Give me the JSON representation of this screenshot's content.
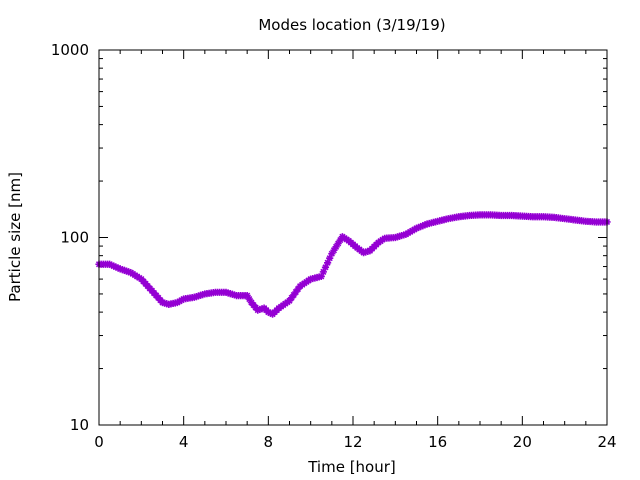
{
  "chart_data": {
    "type": "scatter",
    "title": "Modes location (3/19/19)",
    "xlabel": "Time [hour]",
    "ylabel": "Particle size [nm]",
    "xlim": [
      0,
      24
    ],
    "ylim": [
      10,
      1000
    ],
    "yscale": "log",
    "grid": false,
    "legend": "none",
    "x_ticks": [
      0,
      4,
      8,
      12,
      16,
      20,
      24
    ],
    "x_tick_labels": [
      "0",
      "4",
      "8",
      "12",
      "16",
      "20",
      "24"
    ],
    "y_ticks": [
      10,
      100,
      1000
    ],
    "y_tick_labels": [
      "10",
      "100",
      "1000"
    ],
    "marker": "star",
    "color": "#9400d3",
    "series": [
      {
        "points": [
          [
            0.0,
            72
          ],
          [
            0.5,
            72
          ],
          [
            1.0,
            68
          ],
          [
            1.5,
            65
          ],
          [
            2.0,
            60
          ],
          [
            2.5,
            52
          ],
          [
            3.0,
            45
          ],
          [
            3.3,
            44
          ],
          [
            3.7,
            45
          ],
          [
            4.0,
            47
          ],
          [
            4.5,
            48
          ],
          [
            5.0,
            50
          ],
          [
            5.5,
            51
          ],
          [
            6.0,
            51
          ],
          [
            6.5,
            49
          ],
          [
            7.0,
            49
          ],
          [
            7.2,
            45
          ],
          [
            7.5,
            41
          ],
          [
            7.8,
            42
          ],
          [
            8.0,
            40
          ],
          [
            8.2,
            39
          ],
          [
            8.5,
            42
          ],
          [
            9.0,
            46
          ],
          [
            9.5,
            55
          ],
          [
            10.0,
            60
          ],
          [
            10.5,
            62
          ],
          [
            11.0,
            82
          ],
          [
            11.3,
            93
          ],
          [
            11.5,
            101
          ],
          [
            11.8,
            96
          ],
          [
            12.2,
            88
          ],
          [
            12.5,
            83
          ],
          [
            12.8,
            85
          ],
          [
            13.2,
            94
          ],
          [
            13.5,
            99
          ],
          [
            14.0,
            100
          ],
          [
            14.5,
            104
          ],
          [
            15.0,
            112
          ],
          [
            15.5,
            118
          ],
          [
            16.0,
            122
          ],
          [
            16.5,
            126
          ],
          [
            17.0,
            129
          ],
          [
            17.5,
            131
          ],
          [
            18.0,
            132
          ],
          [
            18.5,
            132
          ],
          [
            19.0,
            131
          ],
          [
            19.5,
            131
          ],
          [
            20.0,
            130
          ],
          [
            20.5,
            129
          ],
          [
            21.0,
            129
          ],
          [
            21.5,
            128
          ],
          [
            22.0,
            126
          ],
          [
            22.5,
            124
          ],
          [
            23.0,
            122
          ],
          [
            23.5,
            121
          ],
          [
            24.0,
            121
          ]
        ]
      }
    ]
  }
}
